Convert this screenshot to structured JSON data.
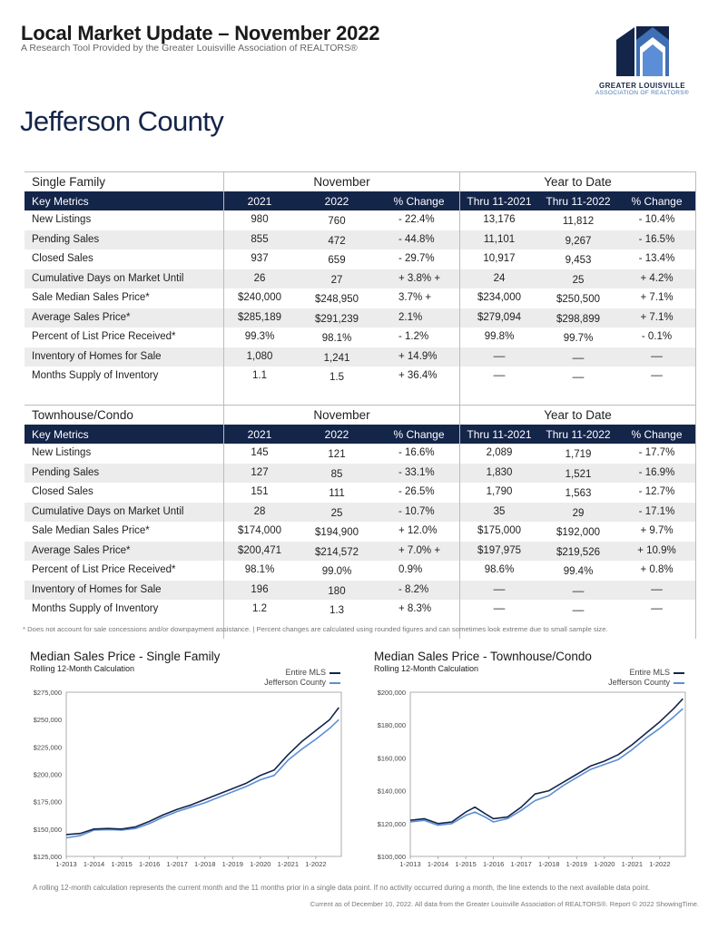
{
  "header": {
    "title": "Local Market Update – November 2022",
    "subtitle": "A Research Tool Provided by the Greater Louisville Association of REALTORS®",
    "logo_line1": "GREATER LOUISVILLE",
    "logo_line2": "ASSOCIATION OF REALTORS®"
  },
  "county": "Jefferson County",
  "columns": {
    "group1": "November",
    "group2": "Year to Date",
    "key": "Key Metrics",
    "c1": "2021",
    "c2": "2022",
    "c3": "% Change",
    "c4": "Thru 11-2021",
    "c5": "Thru 11-2022",
    "c6": "% Change"
  },
  "tables": [
    {
      "name": "Single Family",
      "rows": [
        [
          "New Listings",
          "980",
          "760",
          "-  22.4%",
          "13,176",
          "11,812",
          "- 10.4%"
        ],
        [
          "Pending Sales",
          "855",
          "472",
          "-  44.8%",
          "11,101",
          "9,267",
          "- 16.5%"
        ],
        [
          "Closed Sales",
          "937",
          "659",
          "-  29.7%",
          "10,917",
          "9,453",
          "- 13.4%"
        ],
        [
          "Cumulative  Days  on  Market  Until",
          "26",
          "27",
          "+ 3.8% +",
          "24",
          "25",
          "+ 4.2%"
        ],
        [
          "Sale Median Sales Price*",
          "$240,000",
          "$248,950",
          "3.7%   +",
          "$234,000",
          "$250,500",
          "+ 7.1%"
        ],
        [
          "Average Sales Price*",
          "$285,189",
          "$291,239",
          "2.1%",
          "$279,094",
          "$298,899",
          "+ 7.1%"
        ],
        [
          "Percent of List Price Received*",
          "99.3%",
          "98.1%",
          "- 1.2%",
          "99.8%",
          "99.7%",
          "- 0.1%"
        ],
        [
          "Inventory of Homes for Sale",
          "1,080",
          "1,241",
          "+  14.9%",
          "––",
          "––",
          "––"
        ],
        [
          "Months Supply of Inventory",
          "1.1",
          "1.5",
          "+ 36.4%",
          "––",
          "––",
          "––"
        ]
      ]
    },
    {
      "name": "Townhouse/Condo",
      "rows": [
        [
          "New Listings",
          "145",
          "121",
          "-  16.6%",
          "2,089",
          "1,719",
          "- 17.7%"
        ],
        [
          "Pending Sales",
          "127",
          "85",
          "-  33.1%",
          "1,830",
          "1,521",
          "- 16.9%"
        ],
        [
          "Closed Sales",
          "151",
          "111",
          "-  26.5%",
          "1,790",
          "1,563",
          "- 12.7%"
        ],
        [
          "Cumulative  Days  on  Market  Until",
          "28",
          "25",
          "-  10.7%",
          "35",
          "29",
          "- 17.1%"
        ],
        [
          "Sale Median Sales Price*",
          "$174,000",
          "$194,900",
          "+  12.0%",
          "$175,000",
          "$192,000",
          "+ 9.7%"
        ],
        [
          "Average Sales Price*",
          "$200,471",
          "$214,572",
          "+ 7.0% +",
          "$197,975",
          "$219,526",
          "+ 10.9%"
        ],
        [
          "Percent of List Price Received*",
          "98.1%",
          "99.0%",
          "0.9%",
          "98.6%",
          "99.4%",
          "+ 0.8%"
        ],
        [
          "Inventory of Homes for Sale",
          "196",
          "180",
          "- 8.2%",
          "––",
          "––",
          "––"
        ],
        [
          "Months Supply of Inventory",
          "1.2",
          "1.3",
          "+ 8.3%",
          "––",
          "––",
          "––"
        ]
      ]
    }
  ],
  "note": "* Does not account for sale concessions and/or downpayment assistance.  |  Percent changes are calculated using rounded figures and can sometimes look extreme due to small sample size.",
  "chart_data": [
    {
      "type": "line",
      "title": "Median Sales Price - Single Family",
      "subtitle": "Rolling 12-Month Calculation",
      "x": [
        "1-2013",
        "1-2014",
        "1-2015",
        "1-2016",
        "1-2017",
        "1-2018",
        "1-2019",
        "1-2020",
        "1-2021",
        "1-2022"
      ],
      "ylim": [
        125000,
        275000
      ],
      "yticks": [
        125000,
        150000,
        175000,
        200000,
        225000,
        250000,
        275000
      ],
      "ytick_labels": [
        "$125,000",
        "$150,000",
        "$175,000",
        "$200,000",
        "$225,000",
        "$250,000",
        "$275,000"
      ],
      "legend_position": "top-right",
      "grid": false,
      "series": [
        {
          "name": "Entire MLS",
          "color": "#14254a",
          "points": [
            [
              2013.0,
              145000
            ],
            [
              2013.5,
              146000
            ],
            [
              2014.0,
              150000
            ],
            [
              2014.5,
              150500
            ],
            [
              2015.0,
              150000
            ],
            [
              2015.5,
              152000
            ],
            [
              2016.0,
              157000
            ],
            [
              2016.5,
              163000
            ],
            [
              2017.0,
              168000
            ],
            [
              2017.5,
              172000
            ],
            [
              2018.0,
              177000
            ],
            [
              2018.5,
              182000
            ],
            [
              2019.0,
              187000
            ],
            [
              2019.5,
              192000
            ],
            [
              2020.0,
              199000
            ],
            [
              2020.5,
              204000
            ],
            [
              2021.0,
              218000
            ],
            [
              2021.5,
              230000
            ],
            [
              2022.0,
              240000
            ],
            [
              2022.5,
              250000
            ],
            [
              2022.83,
              261000
            ]
          ]
        },
        {
          "name": "Jefferson County",
          "color": "#5b8ed6",
          "points": [
            [
              2013.0,
              142000
            ],
            [
              2013.5,
              144000
            ],
            [
              2014.0,
              149000
            ],
            [
              2014.5,
              149500
            ],
            [
              2015.0,
              149000
            ],
            [
              2015.5,
              150500
            ],
            [
              2016.0,
              155000
            ],
            [
              2016.5,
              161000
            ],
            [
              2017.0,
              166000
            ],
            [
              2017.5,
              170000
            ],
            [
              2018.0,
              174000
            ],
            [
              2018.5,
              179000
            ],
            [
              2019.0,
              184000
            ],
            [
              2019.5,
              189000
            ],
            [
              2020.0,
              195000
            ],
            [
              2020.5,
              199000
            ],
            [
              2021.0,
              213000
            ],
            [
              2021.5,
              223000
            ],
            [
              2022.0,
              232000
            ],
            [
              2022.5,
              242000
            ],
            [
              2022.83,
              250000
            ]
          ]
        }
      ]
    },
    {
      "type": "line",
      "title": "Median Sales Price - Townhouse/Condo",
      "subtitle": "Rolling 12-Month Calculation",
      "x": [
        "1-2013",
        "1-2014",
        "1-2015",
        "1-2016",
        "1-2017",
        "1-2018",
        "1-2019",
        "1-2020",
        "1-2021",
        "1-2022"
      ],
      "ylim": [
        100000,
        200000
      ],
      "yticks": [
        100000,
        120000,
        140000,
        160000,
        180000,
        200000
      ],
      "ytick_labels": [
        "$100,000",
        "$120,000",
        "$140,000",
        "$160,000",
        "$180,000",
        "$200,000"
      ],
      "legend_position": "top-right",
      "grid": false,
      "series": [
        {
          "name": "Entire MLS",
          "color": "#14254a",
          "points": [
            [
              2013.0,
              122000
            ],
            [
              2013.5,
              123000
            ],
            [
              2014.0,
              120000
            ],
            [
              2014.5,
              121000
            ],
            [
              2015.0,
              127000
            ],
            [
              2015.33,
              130000
            ],
            [
              2015.7,
              126000
            ],
            [
              2016.0,
              123000
            ],
            [
              2016.5,
              124000
            ],
            [
              2017.0,
              130000
            ],
            [
              2017.5,
              138000
            ],
            [
              2018.0,
              140000
            ],
            [
              2018.5,
              145000
            ],
            [
              2019.0,
              150000
            ],
            [
              2019.5,
              155000
            ],
            [
              2020.0,
              158000
            ],
            [
              2020.5,
              162000
            ],
            [
              2021.0,
              168000
            ],
            [
              2021.5,
              175000
            ],
            [
              2022.0,
              182000
            ],
            [
              2022.5,
              190000
            ],
            [
              2022.83,
              196000
            ]
          ]
        },
        {
          "name": "Jefferson County",
          "color": "#5b8ed6",
          "points": [
            [
              2013.0,
              121000
            ],
            [
              2013.5,
              122000
            ],
            [
              2014.0,
              119000
            ],
            [
              2014.5,
              120000
            ],
            [
              2015.0,
              125000
            ],
            [
              2015.33,
              127000
            ],
            [
              2015.7,
              124000
            ],
            [
              2016.0,
              121000
            ],
            [
              2016.5,
              123000
            ],
            [
              2017.0,
              128000
            ],
            [
              2017.5,
              134000
            ],
            [
              2018.0,
              137000
            ],
            [
              2018.5,
              143000
            ],
            [
              2019.0,
              148000
            ],
            [
              2019.5,
              153000
            ],
            [
              2020.0,
              156000
            ],
            [
              2020.5,
              159000
            ],
            [
              2021.0,
              165000
            ],
            [
              2021.5,
              172000
            ],
            [
              2022.0,
              178000
            ],
            [
              2022.5,
              185000
            ],
            [
              2022.83,
              190000
            ]
          ]
        }
      ]
    }
  ],
  "footer": {
    "line1": "A rolling 12-month calculation represents the current month and the 11 months prior in a single data point. If no activity occurred during a month, the line extends to the next available data point.",
    "line2": "Current as of December 10, 2022. All data from the Greater Louisville Association of REALTORS®. Report © 2022 ShowingTime."
  }
}
